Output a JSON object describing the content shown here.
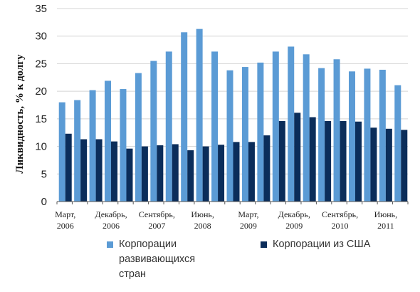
{
  "chart_data": {
    "type": "bar",
    "ylabel": "Ликвидность, % к долгу",
    "ylim": [
      0,
      35
    ],
    "yticks": [
      0,
      5,
      10,
      15,
      20,
      25,
      30,
      35
    ],
    "grid": true,
    "legend_position": "bottom",
    "x_tick_labels": [
      {
        "line1": "Март,",
        "line2": "2006",
        "index": 0
      },
      {
        "line1": "Декабрь,",
        "line2": "2006",
        "index": 3
      },
      {
        "line1": "Сентябрь,",
        "line2": "2007",
        "index": 6
      },
      {
        "line1": "Июнь,",
        "line2": "2008",
        "index": 9
      },
      {
        "line1": "Март,",
        "line2": "2009",
        "index": 12
      },
      {
        "line1": "Декабрь,",
        "line2": "2009",
        "index": 15
      },
      {
        "line1": "Сентябрь,",
        "line2": "2010",
        "index": 18
      },
      {
        "line1": "Июнь,",
        "line2": "2011",
        "index": 21
      }
    ],
    "series": [
      {
        "name": "Корпорации развивающихся стран",
        "legend_lines": [
          "Корпорации",
          "развивающихся",
          "стран"
        ],
        "color": "#5b9bd5",
        "values": [
          18.0,
          18.4,
          20.2,
          21.9,
          20.4,
          23.3,
          25.5,
          27.2,
          30.7,
          31.3,
          27.2,
          23.8,
          24.4,
          25.2,
          27.2,
          28.1,
          26.7,
          24.2,
          25.8,
          23.6,
          24.1,
          23.9,
          21.1
        ]
      },
      {
        "name": "Корпорации из США",
        "legend_lines": [
          "Корпорации из США"
        ],
        "color": "#0b2d5a",
        "values": [
          12.3,
          11.3,
          11.3,
          10.9,
          9.6,
          10.0,
          10.2,
          10.4,
          9.3,
          10.0,
          10.3,
          10.8,
          10.8,
          12.0,
          14.6,
          16.1,
          15.3,
          14.6,
          14.6,
          14.5,
          13.4,
          13.2,
          13.0
        ]
      }
    ]
  }
}
